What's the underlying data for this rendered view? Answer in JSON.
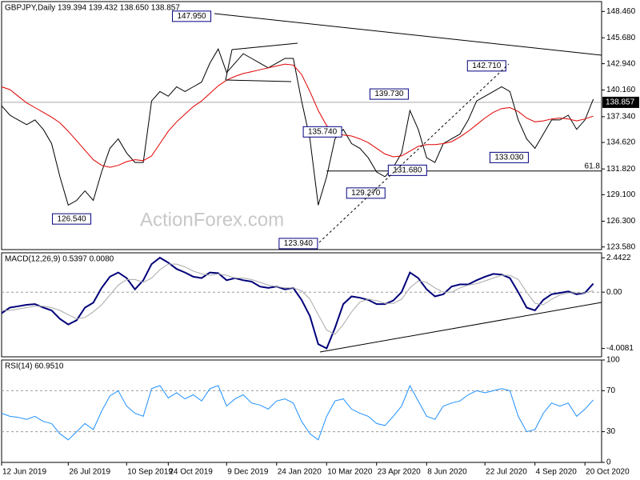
{
  "chart_data": [
    {
      "type": "line",
      "title": "GBPJPY,Daily  139.394 139.432 138.650 138.857",
      "watermark": "ActionForex.com",
      "xlim": [
        0,
        72
      ],
      "ylim": [
        123.3,
        149.5
      ],
      "yticks": [
        {
          "value": 148.46,
          "label": "148.460"
        },
        {
          "value": 145.68,
          "label": "145.680"
        },
        {
          "value": 142.94,
          "label": "142.940"
        },
        {
          "value": 140.16,
          "label": "140.160"
        },
        {
          "value": 137.34,
          "label": "137.340"
        },
        {
          "value": 134.62,
          "label": "134.620"
        },
        {
          "value": 131.82,
          "label": "131.820"
        },
        {
          "value": 129.1,
          "label": "129.100"
        },
        {
          "value": 126.3,
          "label": "126.300"
        },
        {
          "value": 123.58,
          "label": "123.580"
        }
      ],
      "current_price": {
        "value": 138.857,
        "label": "138.857"
      },
      "level": {
        "x": 39,
        "y": 131.6,
        "text": "61.8"
      },
      "series": [
        {
          "color": "#000000",
          "values": [
            138.5,
            137.5,
            137,
            136.5,
            137,
            136,
            134.5,
            131,
            128,
            128.5,
            129.5,
            128.5,
            131.5,
            134,
            135,
            133.5,
            132.5,
            132.5,
            139,
            140,
            139.5,
            140.5,
            140,
            140.5,
            141,
            143,
            144.5,
            142,
            143,
            144,
            143.5,
            143,
            142.5,
            143,
            143.5,
            143.5,
            139,
            135,
            128,
            131,
            135,
            136,
            134.5,
            134,
            133,
            131.5,
            131,
            132,
            133.5,
            138,
            136,
            133,
            132.5,
            134.5,
            135,
            135.5,
            137,
            139,
            139.5,
            140,
            140.5,
            140,
            137,
            135,
            134,
            135.5,
            137,
            137,
            137.5,
            136,
            137,
            139.2
          ]
        },
        {
          "color": "#e00000",
          "values": [
            140.5,
            140.2,
            139.5,
            138.8,
            138.3,
            137.8,
            137.3,
            136.7,
            135.8,
            134.8,
            133.8,
            132.8,
            132.2,
            132.0,
            132.2,
            132.6,
            132.8,
            132.7,
            133.2,
            134.5,
            135.8,
            136.8,
            137.6,
            138.4,
            139.0,
            139.8,
            140.6,
            141.2,
            141.6,
            141.9,
            142.1,
            142.3,
            142.5,
            142.7,
            142.9,
            142.8,
            141.8,
            140.0,
            138.0,
            136.4,
            135.6,
            135.4,
            135.3,
            135.0,
            134.6,
            134.0,
            133.4,
            133.1,
            133.2,
            133.7,
            134.2,
            134.4,
            134.4,
            134.5,
            134.7,
            135.2,
            135.8,
            136.5,
            137.2,
            137.8,
            138.2,
            138.3,
            137.9,
            137.2,
            136.8,
            136.9,
            137.1,
            137.2,
            137.1,
            136.9,
            137.1,
            137.4
          ]
        }
      ],
      "annotations": [
        {
          "x": 20.5,
          "value": 147.95,
          "label": "147.950"
        },
        {
          "x": 55.9,
          "value": 142.71,
          "label": "142.710"
        },
        {
          "x": 44.2,
          "value": 139.73,
          "label": "139.730"
        },
        {
          "x": 36.2,
          "value": 135.74,
          "label": "135.740"
        },
        {
          "x": 58.6,
          "value": 133.03,
          "label": "133.030"
        },
        {
          "x": 46.4,
          "value": 131.68,
          "label": "131.680"
        },
        {
          "x": 41.4,
          "value": 129.27,
          "label": "129.270"
        },
        {
          "x": 6.1,
          "value": 126.54,
          "label": "126.540"
        },
        {
          "x": 33.3,
          "value": 123.94,
          "label": "123.940"
        }
      ]
    },
    {
      "type": "line",
      "title": "MACD(12,26,9) 0.5397 0.0080",
      "xlim": [
        0,
        72
      ],
      "ylim": [
        -4.6,
        2.8
      ],
      "zero_line": true,
      "yticks": [
        2.4422,
        {
          "value": 0,
          "label": "0.00"
        },
        -4.0081
      ],
      "series": [
        {
          "color": "#00007a",
          "width": 2,
          "values": [
            -1.5,
            -1.1,
            -1.0,
            -0.9,
            -0.85,
            -1.1,
            -1.3,
            -1.9,
            -2.3,
            -2.0,
            -1.1,
            -0.75,
            0.3,
            1.1,
            1.4,
            1.0,
            0.2,
            0.85,
            2.0,
            2.45,
            2.1,
            1.65,
            1.4,
            1.1,
            1.0,
            1.4,
            1.35,
            0.85,
            1.0,
            0.85,
            0.75,
            0.4,
            0.3,
            0.4,
            0.2,
            0.3,
            -0.55,
            -1.7,
            -3.7,
            -4.0,
            -2.55,
            -0.85,
            -0.3,
            -0.4,
            -0.55,
            -0.85,
            -0.85,
            -0.6,
            0.0,
            1.4,
            1.0,
            0.2,
            -0.3,
            -0.15,
            0.4,
            0.55,
            0.55,
            0.85,
            1.1,
            1.3,
            1.25,
            1.0,
            0.0,
            -1.1,
            -1.3,
            -0.55,
            -0.15,
            -0.05,
            0.05,
            -0.15,
            -0.05,
            0.6
          ]
        },
        {
          "color": "#a9a9a9",
          "width": 1,
          "values": [
            -1.3,
            -1.3,
            -1.2,
            -1.1,
            -1.0,
            -1.0,
            -1.1,
            -1.3,
            -1.6,
            -1.9,
            -1.8,
            -1.4,
            -0.9,
            -0.2,
            0.5,
            0.9,
            0.9,
            0.7,
            1.0,
            1.6,
            2.0,
            2.0,
            1.8,
            1.5,
            1.3,
            1.2,
            1.3,
            1.2,
            1.0,
            1.0,
            0.9,
            0.7,
            0.5,
            0.4,
            0.3,
            0.3,
            0.1,
            -0.5,
            -1.6,
            -2.7,
            -3.0,
            -2.3,
            -1.4,
            -0.7,
            -0.5,
            -0.6,
            -0.8,
            -0.8,
            -0.5,
            0.3,
            0.8,
            0.7,
            0.3,
            0.0,
            0.0,
            0.3,
            0.5,
            0.6,
            0.8,
            1.0,
            1.2,
            1.2,
            0.9,
            0.0,
            -0.8,
            -0.9,
            -0.5,
            -0.2,
            -0.05,
            -0.05,
            -0.05,
            0.1
          ]
        }
      ]
    },
    {
      "type": "line",
      "title": "RSI(14) 60.9510",
      "xlim": [
        0,
        72
      ],
      "ylim": [
        0,
        100
      ],
      "grid": true,
      "yticks": [
        100,
        70,
        30,
        0
      ],
      "xticks": [
        {
          "value": 0,
          "label": "12 Jun 2019"
        },
        {
          "value": 8,
          "label": "26 Jul 2019"
        },
        {
          "value": 15,
          "label": "10 Sep 2019"
        },
        {
          "value": 20,
          "label": "24 Oct 2019"
        },
        {
          "value": 27,
          "label": "9 Dec 2019"
        },
        {
          "value": 33,
          "label": "24 Jan 2020"
        },
        {
          "value": 39,
          "label": "10 Mar 2020"
        },
        {
          "value": 45,
          "label": "23 Apr 2020"
        },
        {
          "value": 51,
          "label": "8 Jun 2020"
        },
        {
          "value": 58,
          "label": "22 Jul 2020"
        },
        {
          "value": 64,
          "label": "4 Sep 2020"
        },
        {
          "value": 70,
          "label": "20 Oct 2020"
        }
      ],
      "series": [
        {
          "color": "#1e90ff",
          "width": 1,
          "values": [
            48,
            45,
            44,
            42,
            45,
            40,
            38,
            28,
            22,
            30,
            38,
            32,
            50,
            65,
            70,
            55,
            48,
            45,
            72,
            75,
            63,
            68,
            62,
            66,
            60,
            72,
            75,
            55,
            62,
            66,
            58,
            56,
            52,
            60,
            62,
            58,
            40,
            28,
            22,
            45,
            60,
            62,
            52,
            48,
            45,
            38,
            36,
            45,
            55,
            75,
            60,
            45,
            42,
            55,
            58,
            60,
            66,
            70,
            68,
            70,
            72,
            70,
            45,
            30,
            32,
            48,
            58,
            55,
            58,
            45,
            52,
            61
          ]
        }
      ]
    }
  ]
}
